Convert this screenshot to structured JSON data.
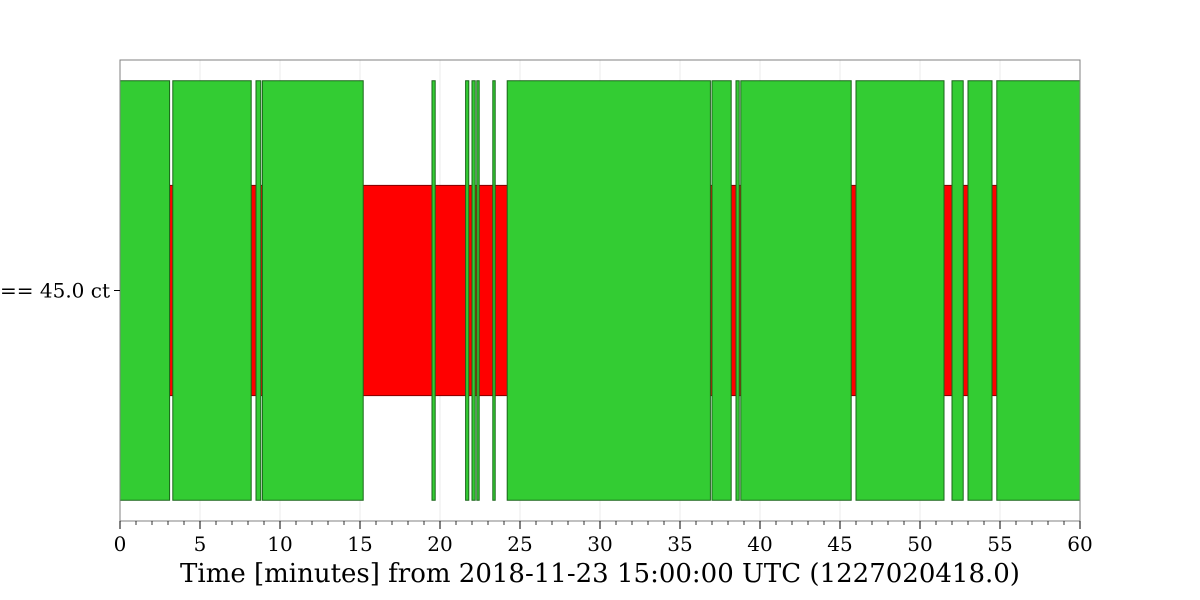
{
  "chart_data": {
    "type": "segment",
    "title": "",
    "xlabel": "Time [minutes] from 2018-11-23 15:00:00 UTC (1227020418.0)",
    "ylabel": "",
    "xlim": [
      0,
      60
    ],
    "xticks": [
      0,
      5,
      10,
      15,
      20,
      25,
      30,
      35,
      40,
      45,
      50,
      55,
      60
    ],
    "xtick_labels": [
      "0",
      "5",
      "10",
      "15",
      "20",
      "25",
      "30",
      "35",
      "40",
      "45",
      "50",
      "55",
      "60"
    ],
    "grid": true,
    "flags": [
      {
        "label": "== 45.0 ct",
        "known_color": "#ff0000",
        "active_color": "#33cc33",
        "known": [
          [
            0,
            60
          ]
        ],
        "active": [
          [
            0,
            3.1
          ],
          [
            3.3,
            8.2
          ],
          [
            8.5,
            8.8
          ],
          [
            8.9,
            15.2
          ],
          [
            19.5,
            19.7
          ],
          [
            21.6,
            21.8
          ],
          [
            22.0,
            22.2
          ],
          [
            22.3,
            22.45
          ],
          [
            23.3,
            23.45
          ],
          [
            24.2,
            36.9
          ],
          [
            37.0,
            38.2
          ],
          [
            38.5,
            38.7
          ],
          [
            38.8,
            45.7
          ],
          [
            46.0,
            51.5
          ],
          [
            52.0,
            52.7
          ],
          [
            53.0,
            54.5
          ],
          [
            54.8,
            60
          ]
        ]
      }
    ]
  }
}
